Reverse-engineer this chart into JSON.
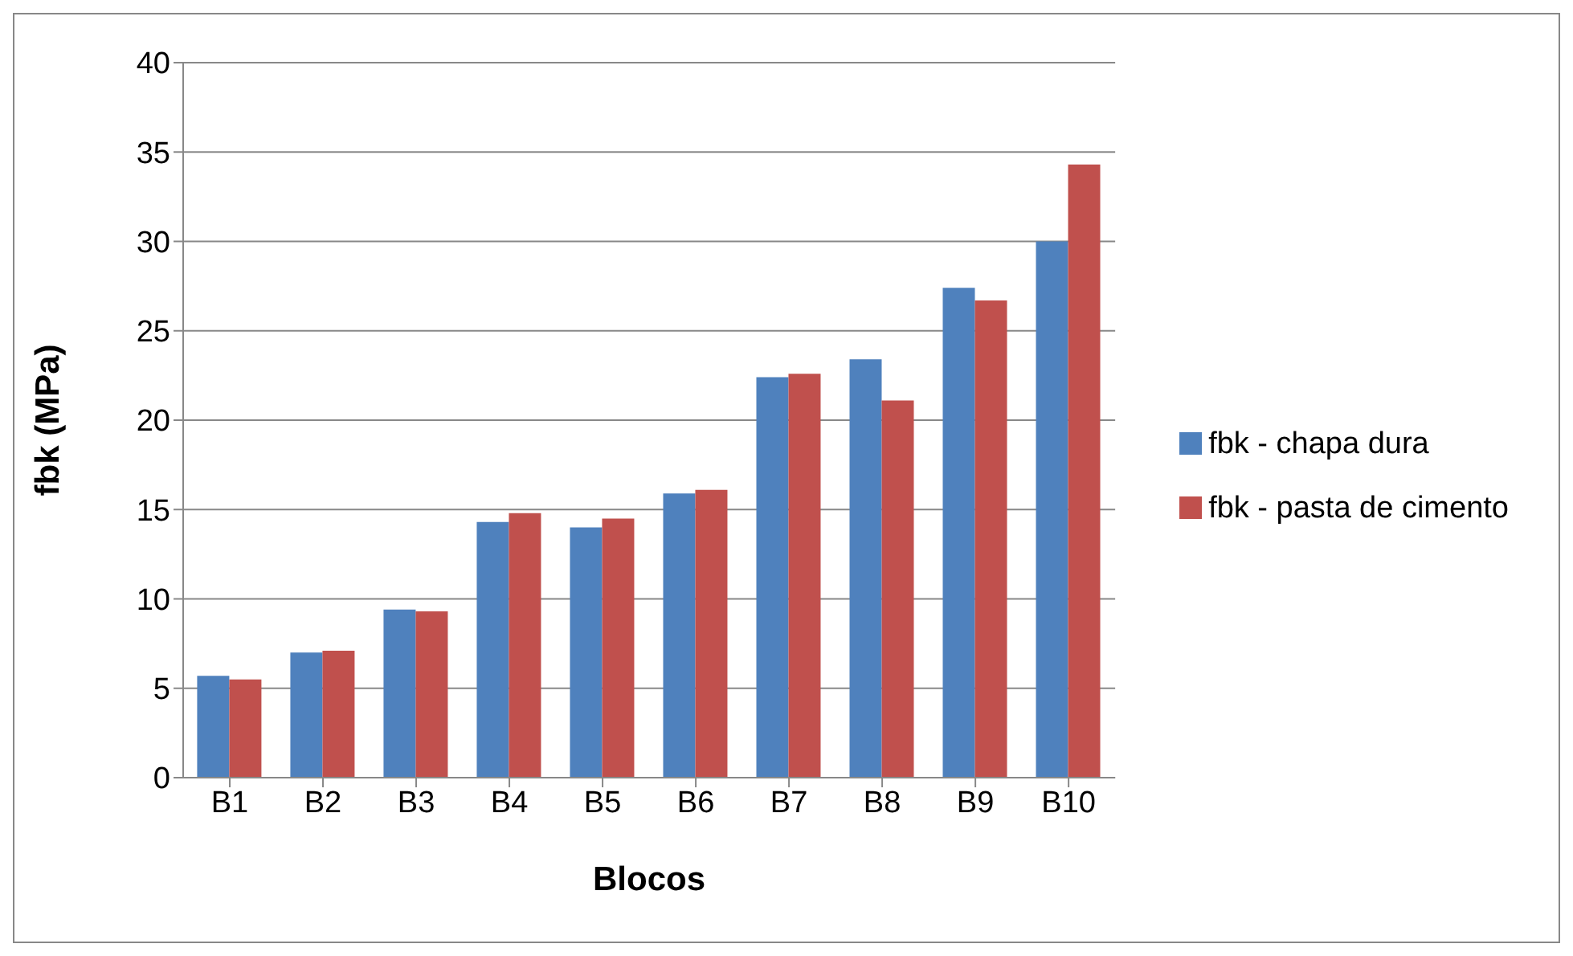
{
  "chart_data": {
    "type": "bar",
    "xlabel": "Blocos",
    "ylabel": "fbk (MPa)",
    "categories": [
      "B1",
      "B2",
      "B3",
      "B4",
      "B5",
      "B6",
      "B7",
      "B8",
      "B9",
      "B10"
    ],
    "series": [
      {
        "name": "fbk - chapa dura",
        "color": "#4f81bd",
        "values": [
          5.7,
          7.0,
          9.4,
          14.3,
          14.0,
          15.9,
          22.4,
          23.4,
          27.4,
          30.0
        ]
      },
      {
        "name": "fbk - pasta de cimento",
        "color": "#c0504d",
        "values": [
          5.5,
          7.1,
          9.3,
          14.8,
          14.5,
          16.1,
          22.6,
          21.1,
          26.7,
          34.3
        ]
      }
    ],
    "ylim": [
      0,
      40
    ],
    "yticks": [
      0,
      5,
      10,
      15,
      20,
      25,
      30,
      35,
      40
    ],
    "grid": "y",
    "legend": "right"
  }
}
